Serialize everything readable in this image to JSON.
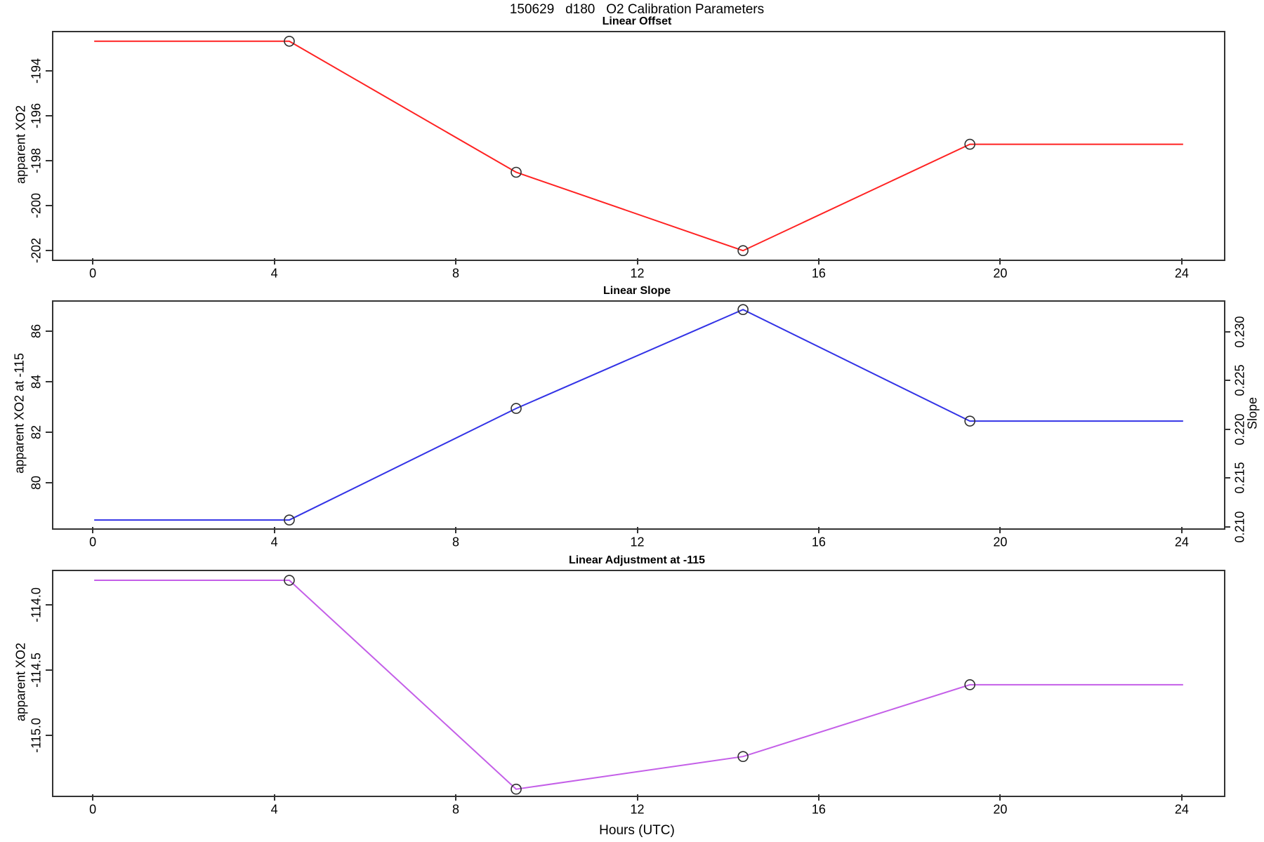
{
  "page_title": "150629   d180   O2 Calibration Parameters",
  "x_axis_label": "Hours (UTC)",
  "chart_data": [
    {
      "type": "line",
      "title": "Linear Offset",
      "ylabel": "apparent XO2",
      "xlim": [
        -0.9,
        24.9
      ],
      "ylim": [
        -202.35,
        -192.2
      ],
      "xticks": [
        "0",
        "4",
        "8",
        "12",
        "16",
        "20",
        "24"
      ],
      "yticks": [
        "-194",
        "-196",
        "-198",
        "-200",
        "-202"
      ],
      "grid": false,
      "series": [
        {
          "name": "linear-offset",
          "color": "#ff2222",
          "x": [
            0,
            4.3,
            9.3,
            14.3,
            19.3,
            24
          ],
          "y": [
            -192.6,
            -192.6,
            -198.45,
            -201.95,
            -197.2,
            -197.2
          ],
          "marker_indices": [
            1,
            2,
            3,
            4
          ],
          "marker": "open-circle",
          "marker_color": "#2f2f2f"
        }
      ]
    },
    {
      "type": "line",
      "title": "Linear Slope",
      "ylabel": "apparent XO2 at -115",
      "y2label": "Slope",
      "xlim": [
        -0.9,
        24.9
      ],
      "ylim": [
        78.27,
        87.21
      ],
      "y2lim": [
        0.21,
        0.2332
      ],
      "xticks": [
        "0",
        "4",
        "8",
        "12",
        "16",
        "20",
        "24"
      ],
      "yticks": [
        "80",
        "82",
        "84",
        "86"
      ],
      "y2ticks": [
        "0.210",
        "0.215",
        "0.220",
        "0.225",
        "0.230"
      ],
      "grid": false,
      "series": [
        {
          "name": "linear-slope",
          "color": "#3333e6",
          "x": [
            0,
            4.3,
            9.3,
            14.3,
            19.3,
            24
          ],
          "y": [
            78.6,
            78.6,
            83.0,
            86.9,
            82.5,
            82.5
          ],
          "marker_indices": [
            1,
            2,
            3,
            4
          ],
          "marker": "open-circle",
          "marker_color": "#2f2f2f"
        }
      ]
    },
    {
      "type": "line",
      "title": "Linear Adjustment at -115",
      "ylabel": "apparent XO2",
      "xlim": [
        -0.9,
        24.9
      ],
      "ylim": [
        -115.45,
        -113.73
      ],
      "xticks": [
        "0",
        "4",
        "8",
        "12",
        "16",
        "20",
        "24"
      ],
      "yticks": [
        "-114.0",
        "-114.5",
        "-115.0"
      ],
      "grid": false,
      "series": [
        {
          "name": "linear-adjustment",
          "color": "#c45fe8",
          "x": [
            0,
            4.3,
            9.3,
            14.3,
            19.3,
            24
          ],
          "y": [
            -113.8,
            -113.8,
            -115.4,
            -115.15,
            -114.6,
            -114.6
          ],
          "marker_indices": [
            1,
            2,
            3,
            4
          ],
          "marker": "open-circle",
          "marker_color": "#2f2f2f"
        }
      ]
    }
  ]
}
